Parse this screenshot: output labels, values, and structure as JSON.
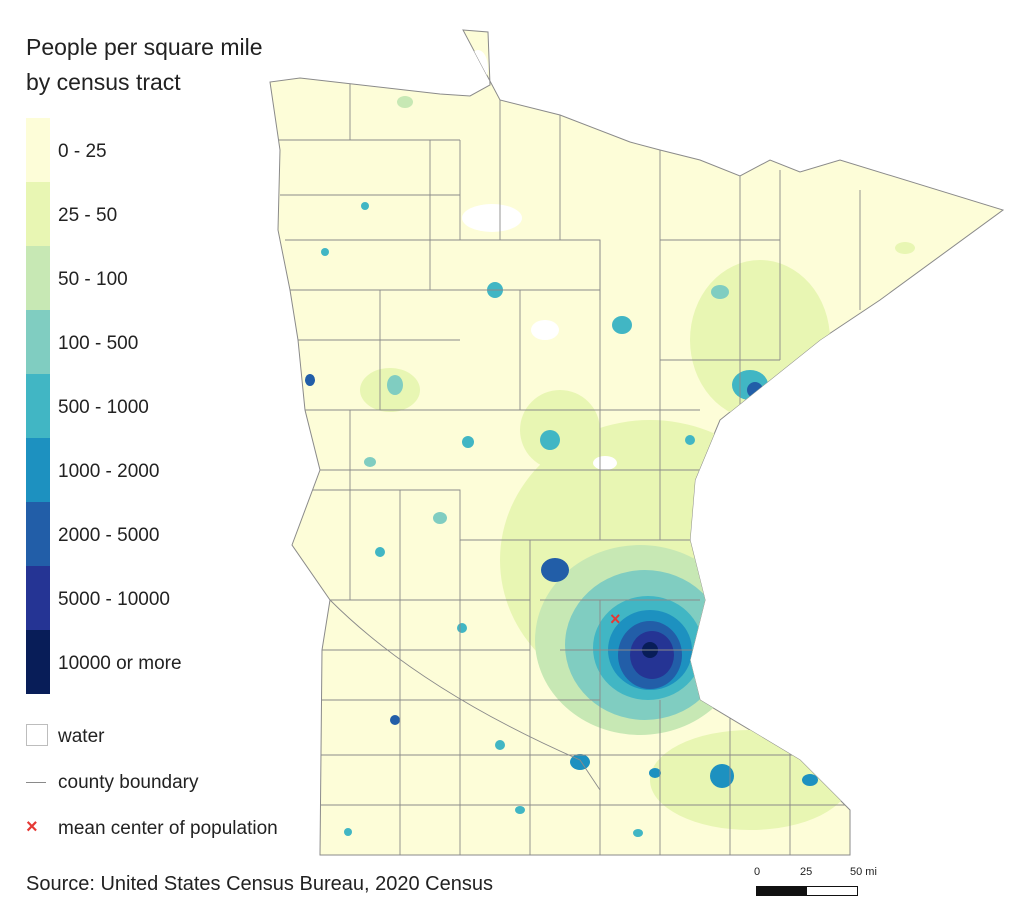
{
  "legend": {
    "title_line1": "People per square mile",
    "title_line2": "by census tract",
    "classes": [
      {
        "label": "0 - 25",
        "color": "#fdfdd8"
      },
      {
        "label": "25 - 50",
        "color": "#e8f6b3"
      },
      {
        "label": "50 - 100",
        "color": "#c7e8b4"
      },
      {
        "label": "100 - 500",
        "color": "#80cdc1"
      },
      {
        "label": "500 - 1000",
        "color": "#41b6c4"
      },
      {
        "label": "1000 - 2000",
        "color": "#1d91c0"
      },
      {
        "label": "2000 - 5000",
        "color": "#225ea8"
      },
      {
        "label": "5000 - 10000",
        "color": "#253494"
      },
      {
        "label": "10000 or more",
        "color": "#081d58"
      }
    ],
    "water_label": "water",
    "county_label": "county boundary",
    "center_label": "mean center of population",
    "center_symbol": "×",
    "county_line_color": "#8a8a8a",
    "center_color": "#e53935"
  },
  "source": "Source: United States Census Bureau, 2020 Census",
  "scale": {
    "labels": [
      "0",
      "25",
      "50 mi"
    ]
  }
}
